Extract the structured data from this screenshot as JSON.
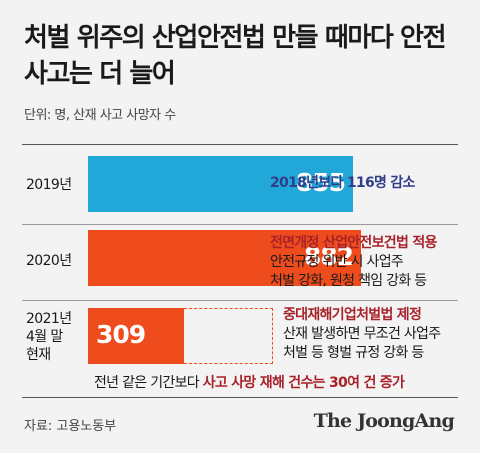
{
  "title": "처벌 위주의 산업안전법 만들 때마다 안전사고는 더 늘어",
  "unit": "단위: 명, 산재 사고 사망자 수",
  "chart_data": {
    "type": "bar",
    "title": "처벌 위주의 산업안전법 만들 때마다 안전사고는 더 늘어",
    "categories": [
      "2019년",
      "2020년",
      "2021년 4월 말 현재"
    ],
    "values": [
      855,
      882,
      309
    ],
    "colors": [
      "#22a8d8",
      "#ef4c1e",
      "#ef4c1e"
    ],
    "ylabel": "단위: 명, 산재 사고 사망자 수"
  },
  "rows": [
    {
      "year_lines": [
        "2019년"
      ],
      "value": "855",
      "notes": [
        [
          {
            "t": "2018년보다 116명 감소",
            "c": "blue"
          }
        ]
      ]
    },
    {
      "year_lines": [
        "2020년"
      ],
      "value": "882",
      "notes": [
        [
          {
            "t": "전면개정 산업안전보건법 적용",
            "c": "hl"
          }
        ],
        [
          {
            "t": "안전규정 위반 시 사업주",
            "c": ""
          }
        ],
        [
          {
            "t": "처벌 강화, 원청 책임 강화 등",
            "c": ""
          }
        ]
      ]
    },
    {
      "year_lines": [
        "2021년",
        "4월 말",
        "현재"
      ],
      "value": "309",
      "notes": [
        [
          {
            "t": "중대재해기업처벌법 제정",
            "c": "hl"
          }
        ],
        [
          {
            "t": "산재 발생하면 무조건 사업주",
            "c": ""
          }
        ],
        [
          {
            "t": "처벌 등 형벌 규정 강화 등",
            "c": ""
          }
        ]
      ]
    }
  ],
  "footer_note": [
    {
      "t": "전년 같은 기간보다 ",
      "c": ""
    },
    {
      "t": "사고 사망 재해 건수는 30여 건 증가",
      "c": "hl"
    }
  ],
  "source": "자료: 고용노동부",
  "logo": "The JoongAng"
}
